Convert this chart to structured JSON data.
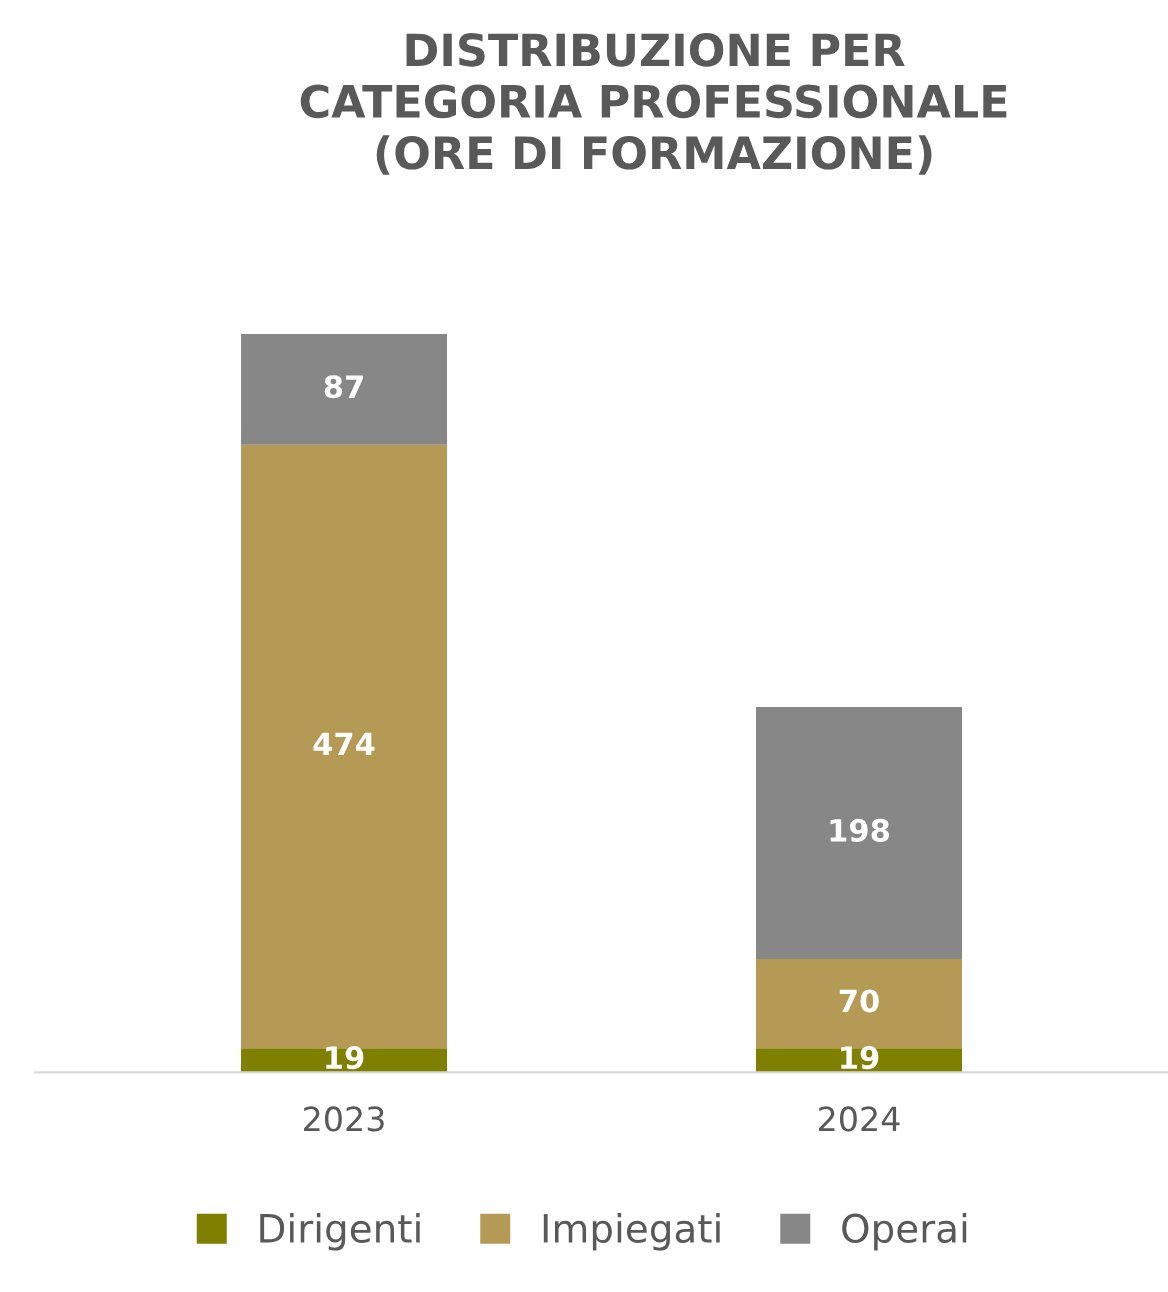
{
  "chart_data": {
    "type": "bar",
    "title": "DISTRIBUZIONE PER\nCATEGORIA PROFESSIONALE\n(ORE DI FORMAZIONE)",
    "categories": [
      "2023",
      "2024"
    ],
    "stacked": true,
    "data_labels": true,
    "grid": false,
    "legend": "bottom",
    "series": [
      {
        "name": "Dirigenti",
        "color": "#7f7f00",
        "values": [
          19,
          19
        ]
      },
      {
        "name": "Impiegati",
        "color": "#b59a55",
        "values": [
          474,
          70
        ]
      },
      {
        "name": "Operai",
        "color": "#878787",
        "values": [
          87,
          198
        ]
      }
    ]
  }
}
